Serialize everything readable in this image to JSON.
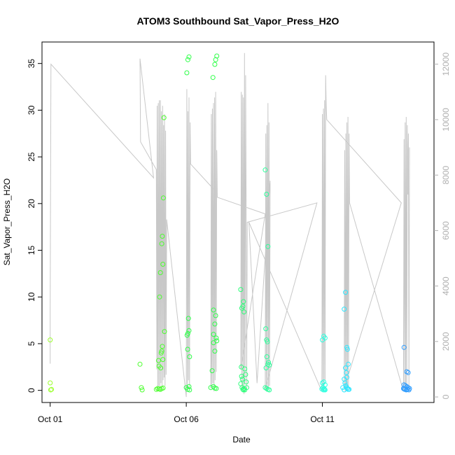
{
  "chart_data": {
    "type": "scatter",
    "title": "ATOM3 Southbound Sat_Vapor_Press_H2O",
    "xlabel": "Date",
    "ylabel": "Sat_Vapor_Press_H2O",
    "x_ticks": [
      "Oct 01",
      "Oct 06",
      "Oct 11"
    ],
    "x_tick_days": [
      1,
      6,
      11
    ],
    "xlim": [
      0.7,
      15.1
    ],
    "ylim": [
      -1.3,
      37.3
    ],
    "y_ticks": [
      0,
      5,
      10,
      15,
      20,
      25,
      30,
      35
    ],
    "ylim_right": [
      -200,
      12800
    ],
    "y_ticks_right": [
      0,
      2000,
      4000,
      6000,
      8000,
      10000,
      12000
    ],
    "grid": false,
    "legend": "none",
    "colors": {
      "line": "#c8c8c8",
      "right_axis": "#b0b0b0",
      "frame": "#000000"
    },
    "series": [
      {
        "color": "#9cff2e",
        "points": [
          [
            1.0,
            5.4
          ],
          [
            1.0,
            0.8
          ],
          [
            1.05,
            0.1
          ],
          [
            1.02,
            0.05
          ]
        ]
      },
      {
        "color": "#4cff2e",
        "points": [
          [
            4.3,
            2.8
          ],
          [
            4.35,
            0.3
          ],
          [
            4.38,
            0.05
          ],
          [
            4.9,
            0.1
          ],
          [
            4.95,
            0.2
          ],
          [
            5.0,
            0.15
          ],
          [
            5.05,
            0.1
          ],
          [
            5.1,
            0.2
          ],
          [
            5.15,
            0.25
          ],
          [
            5.02,
            10.0
          ],
          [
            4.98,
            3.2
          ],
          [
            5.0,
            2.6
          ],
          [
            5.06,
            2.4
          ],
          [
            5.08,
            4.0
          ],
          [
            5.1,
            4.2
          ],
          [
            5.12,
            4.7
          ],
          [
            5.14,
            3.3
          ],
          [
            5.05,
            12.6
          ],
          [
            5.1,
            15.7
          ],
          [
            5.12,
            16.5
          ],
          [
            5.14,
            13.5
          ],
          [
            5.16,
            20.6
          ],
          [
            5.18,
            29.2
          ],
          [
            5.2,
            6.3
          ]
        ]
      },
      {
        "color": "#2eff48",
        "points": [
          [
            6.0,
            0.3
          ],
          [
            6.05,
            0.1
          ],
          [
            6.1,
            0.4
          ],
          [
            6.12,
            0.05
          ],
          [
            6.03,
            5.9
          ],
          [
            6.06,
            6.1
          ],
          [
            6.1,
            6.4
          ],
          [
            6.05,
            4.4
          ],
          [
            6.12,
            3.6
          ],
          [
            6.08,
            7.7
          ],
          [
            6.02,
            34.0
          ],
          [
            6.06,
            35.4
          ],
          [
            6.1,
            35.7
          ],
          [
            6.9,
            0.3
          ],
          [
            7.0,
            0.4
          ],
          [
            7.05,
            0.25
          ],
          [
            7.1,
            0.2
          ],
          [
            6.95,
            2.1
          ],
          [
            7.0,
            5.1
          ],
          [
            7.05,
            4.2
          ],
          [
            7.1,
            5.6
          ],
          [
            7.12,
            5.3
          ],
          [
            7.0,
            6.0
          ],
          [
            7.05,
            7.1
          ],
          [
            7.08,
            8.0
          ],
          [
            7.0,
            8.6
          ],
          [
            6.98,
            33.5
          ],
          [
            7.05,
            34.9
          ],
          [
            7.08,
            35.4
          ],
          [
            7.12,
            35.8
          ]
        ]
      },
      {
        "color": "#2eff7a",
        "points": [
          [
            8.0,
            10.8
          ],
          [
            8.02,
            2.5
          ],
          [
            8.05,
            0.3
          ],
          [
            8.08,
            0.1
          ],
          [
            8.1,
            0.05
          ],
          [
            8.12,
            0.2
          ],
          [
            8.15,
            0.05
          ],
          [
            8.04,
            8.8
          ],
          [
            8.08,
            9.0
          ],
          [
            8.1,
            9.5
          ],
          [
            8.12,
            8.4
          ],
          [
            8.15,
            2.3
          ],
          [
            8.18,
            1.7
          ],
          [
            8.2,
            0.9
          ],
          [
            8.22,
            0.3
          ],
          [
            8.0,
            0.7
          ],
          [
            8.03,
            1.5
          ],
          [
            8.06,
            1.2
          ]
        ]
      },
      {
        "color": "#2eff9c",
        "points": [
          [
            8.9,
            23.6
          ],
          [
            8.95,
            21.0
          ],
          [
            9.0,
            15.4
          ],
          [
            8.92,
            6.6
          ],
          [
            8.95,
            5.4
          ],
          [
            8.98,
            5.2
          ],
          [
            9.0,
            2.8
          ],
          [
            9.02,
            3.0
          ],
          [
            9.05,
            2.7
          ],
          [
            8.93,
            2.4
          ],
          [
            8.96,
            3.6
          ],
          [
            8.9,
            0.3
          ],
          [
            8.95,
            0.2
          ],
          [
            9.0,
            0.1
          ],
          [
            9.05,
            0.05
          ]
        ]
      },
      {
        "color": "#2effe0",
        "points": [
          [
            11.0,
            5.4
          ],
          [
            11.05,
            5.8
          ],
          [
            11.1,
            5.6
          ],
          [
            11.0,
            0.8
          ],
          [
            11.05,
            0.9
          ],
          [
            11.1,
            0.6
          ],
          [
            11.02,
            0.3
          ],
          [
            11.06,
            0.2
          ],
          [
            11.08,
            0.1
          ],
          [
            11.1,
            0.05
          ],
          [
            10.98,
            0.15
          ],
          [
            11.04,
            0.05
          ]
        ]
      },
      {
        "color": "#2ee6ff",
        "points": [
          [
            11.8,
            8.7
          ],
          [
            11.85,
            10.5
          ],
          [
            11.9,
            4.6
          ],
          [
            11.92,
            4.4
          ],
          [
            11.95,
            2.8
          ],
          [
            11.85,
            2.4
          ],
          [
            11.88,
            1.9
          ],
          [
            11.9,
            1.4
          ],
          [
            11.8,
            1.2
          ],
          [
            11.83,
            0.8
          ],
          [
            11.86,
            0.5
          ],
          [
            11.9,
            0.3
          ],
          [
            11.92,
            0.2
          ],
          [
            11.95,
            0.1
          ],
          [
            11.8,
            0.05
          ],
          [
            11.75,
            0.3
          ],
          [
            11.98,
            0.1
          ]
        ]
      },
      {
        "color": "#2e9cff",
        "points": [
          [
            14.0,
            4.6
          ],
          [
            14.1,
            2.0
          ],
          [
            14.15,
            1.9
          ],
          [
            14.0,
            0.6
          ],
          [
            14.05,
            0.5
          ],
          [
            14.1,
            0.4
          ],
          [
            14.15,
            0.3
          ],
          [
            14.2,
            0.2
          ],
          [
            14.0,
            0.15
          ],
          [
            14.03,
            0.1
          ],
          [
            14.08,
            0.05
          ],
          [
            14.12,
            0.1
          ],
          [
            14.18,
            0.05
          ],
          [
            13.98,
            0.2
          ]
        ]
      }
    ],
    "line_series": {
      "axis": "right",
      "points": [
        [
          1.0,
          1200
        ],
        [
          1.0,
          3200
        ],
        [
          1.03,
          12000
        ],
        [
          4.8,
          7900
        ],
        [
          4.3,
          12200
        ],
        [
          4.32,
          9200
        ],
        [
          4.9,
          8200
        ],
        [
          4.92,
          1000
        ],
        [
          4.93,
          10500
        ],
        [
          4.95,
          200
        ],
        [
          4.97,
          10600
        ],
        [
          4.99,
          400
        ],
        [
          5.01,
          10700
        ],
        [
          5.03,
          300
        ],
        [
          5.05,
          10700
        ],
        [
          5.07,
          500
        ],
        [
          5.09,
          10300
        ],
        [
          5.11,
          300
        ],
        [
          5.13,
          10500
        ],
        [
          5.15,
          600
        ],
        [
          5.17,
          9800
        ],
        [
          5.19,
          700
        ],
        [
          5.2,
          10200
        ],
        [
          5.22,
          400
        ],
        [
          5.24,
          9600
        ],
        [
          5.26,
          800
        ],
        [
          5.28,
          6400
        ],
        [
          6.0,
          0
        ],
        [
          6.02,
          11100
        ],
        [
          6.04,
          200
        ],
        [
          6.06,
          10300
        ],
        [
          6.08,
          600
        ],
        [
          6.1,
          10800
        ],
        [
          6.12,
          300
        ],
        [
          6.14,
          9900
        ],
        [
          6.16,
          8400
        ],
        [
          7.0,
          7500
        ],
        [
          6.9,
          300
        ],
        [
          6.92,
          10200
        ],
        [
          6.94,
          400
        ],
        [
          6.96,
          10400
        ],
        [
          6.98,
          500
        ],
        [
          7.0,
          10600
        ],
        [
          7.02,
          200
        ],
        [
          7.04,
          10800
        ],
        [
          7.06,
          600
        ],
        [
          7.08,
          11000
        ],
        [
          7.1,
          900
        ],
        [
          7.12,
          8900
        ],
        [
          7.14,
          7200
        ],
        [
          8.9,
          6600
        ],
        [
          8.0,
          1000
        ],
        [
          8.02,
          11000
        ],
        [
          8.04,
          300
        ],
        [
          8.06,
          10900
        ],
        [
          8.08,
          200
        ],
        [
          8.1,
          10800
        ],
        [
          8.12,
          100
        ],
        [
          8.14,
          12400
        ],
        [
          8.16,
          500
        ],
        [
          8.18,
          11600
        ],
        [
          8.2,
          6600
        ],
        [
          8.22,
          300
        ],
        [
          8.24,
          6300
        ],
        [
          10.8,
          7000
        ],
        [
          8.9,
          300
        ],
        [
          8.92,
          9500
        ],
        [
          8.94,
          200
        ],
        [
          8.96,
          9800
        ],
        [
          8.98,
          200
        ],
        [
          9.0,
          10600
        ],
        [
          9.02,
          300
        ],
        [
          9.04,
          9900
        ],
        [
          9.06,
          400
        ],
        [
          9.08,
          7800
        ],
        [
          8.6,
          500
        ],
        [
          8.3,
          6300
        ],
        [
          10.98,
          200
        ],
        [
          11.0,
          10200
        ],
        [
          11.02,
          300
        ],
        [
          11.04,
          10400
        ],
        [
          11.06,
          200
        ],
        [
          11.08,
          10700
        ],
        [
          11.1,
          600
        ],
        [
          11.12,
          11600
        ],
        [
          11.14,
          10500
        ],
        [
          11.16,
          10000
        ],
        [
          13.9,
          7000
        ],
        [
          11.8,
          300
        ],
        [
          11.82,
          8900
        ],
        [
          11.84,
          200
        ],
        [
          11.86,
          9500
        ],
        [
          11.88,
          300
        ],
        [
          11.9,
          9900
        ],
        [
          11.92,
          200
        ],
        [
          11.94,
          10100
        ],
        [
          11.96,
          400
        ],
        [
          11.98,
          9500
        ],
        [
          12.0,
          7000
        ],
        [
          13.98,
          200
        ],
        [
          14.0,
          9300
        ],
        [
          14.02,
          300
        ],
        [
          14.04,
          9900
        ],
        [
          14.06,
          200
        ],
        [
          14.08,
          10100
        ],
        [
          14.1,
          400
        ],
        [
          14.12,
          9800
        ],
        [
          14.14,
          7300
        ],
        [
          14.16,
          9500
        ],
        [
          14.18,
          200
        ],
        [
          14.2,
          9000
        ]
      ]
    }
  }
}
